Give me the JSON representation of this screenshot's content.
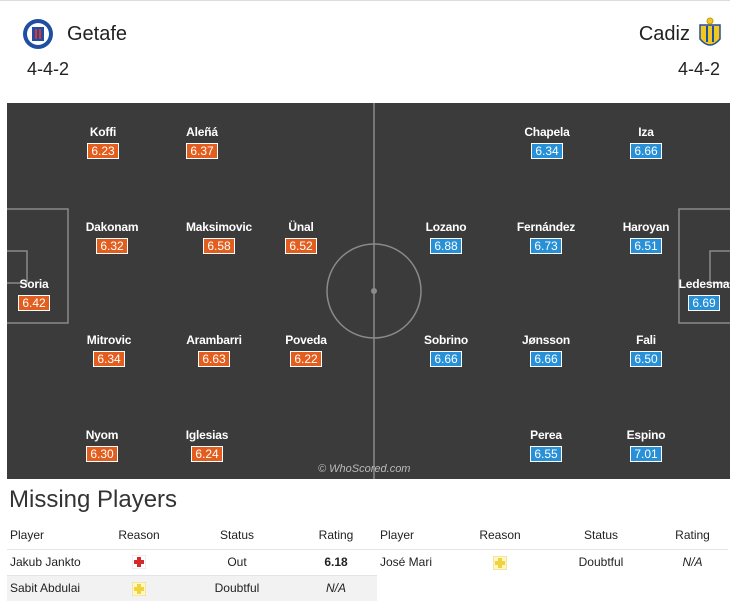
{
  "home": {
    "name": "Getafe",
    "formation": "4-4-2",
    "colors": {
      "primary": "#1f4fa3",
      "accent": "#e5332a"
    }
  },
  "away": {
    "name": "Cadiz",
    "formation": "4-4-2",
    "colors": {
      "primary": "#f2c81e",
      "accent": "#1f4fa3"
    }
  },
  "home_players": [
    {
      "name": "Koffi",
      "rating": "6.23"
    },
    {
      "name": "Aleñá",
      "rating": "6.37"
    },
    {
      "name": "Dakonam",
      "rating": "6.32"
    },
    {
      "name": "Maksimovic",
      "rating": "6.58"
    },
    {
      "name": "Ünal",
      "rating": "6.52"
    },
    {
      "name": "Soria",
      "rating": "6.42"
    },
    {
      "name": "Mitrovic",
      "rating": "6.34"
    },
    {
      "name": "Arambarri",
      "rating": "6.63"
    },
    {
      "name": "Poveda",
      "rating": "6.22"
    },
    {
      "name": "Nyom",
      "rating": "6.30"
    },
    {
      "name": "Iglesias",
      "rating": "6.24"
    }
  ],
  "away_players": [
    {
      "name": "Chapela",
      "rating": "6.34"
    },
    {
      "name": "Iza",
      "rating": "6.66"
    },
    {
      "name": "Lozano",
      "rating": "6.88"
    },
    {
      "name": "Fernández",
      "rating": "6.73"
    },
    {
      "name": "Haroyan",
      "rating": "6.51"
    },
    {
      "name": "Ledesma",
      "rating": "6.69"
    },
    {
      "name": "Sobrino",
      "rating": "6.66"
    },
    {
      "name": "Jønsson",
      "rating": "6.66"
    },
    {
      "name": "Fali",
      "rating": "6.50"
    },
    {
      "name": "Perea",
      "rating": "6.55"
    },
    {
      "name": "Espino",
      "rating": "7.01"
    }
  ],
  "watermark": "© WhoScored.com",
  "missing": {
    "title": "Missing Players",
    "headers": {
      "player": "Player",
      "reason": "Reason",
      "status": "Status",
      "rating": "Rating"
    },
    "home_rows": [
      {
        "player": "Jakub Jankto",
        "reason_icon": "injury-icon",
        "status": "Out",
        "rating": "6.18"
      },
      {
        "player": "Sabit Abdulai",
        "reason_icon": "doubtful-icon",
        "status": "Doubtful",
        "rating": "N/A"
      }
    ],
    "away_rows": [
      {
        "player": "José Mari",
        "reason_icon": "doubtful-icon",
        "status": "Doubtful",
        "rating": "N/A"
      }
    ]
  }
}
